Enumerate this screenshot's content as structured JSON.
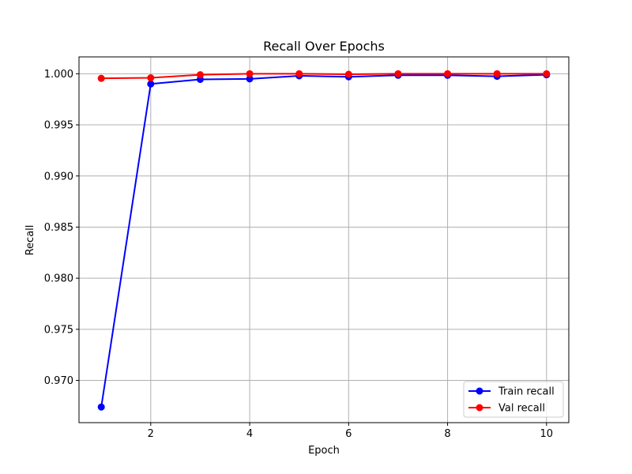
{
  "chart_data": {
    "type": "line",
    "title": "Recall Over Epochs",
    "xlabel": "Epoch",
    "ylabel": "Recall",
    "x": [
      1,
      2,
      3,
      4,
      5,
      6,
      7,
      8,
      9,
      10
    ],
    "xlim": [
      0.55,
      10.45
    ],
    "ylim": [
      0.96587,
      1.00165
    ],
    "xticks": [
      2,
      4,
      6,
      8,
      10
    ],
    "xtick_labels": [
      "2",
      "4",
      "6",
      "8",
      "10"
    ],
    "yticks": [
      0.97,
      0.975,
      0.98,
      0.985,
      0.99,
      0.995,
      1.0
    ],
    "ytick_labels": [
      "0.970",
      "0.975",
      "0.980",
      "0.985",
      "0.990",
      "0.995",
      "1.000"
    ],
    "grid": true,
    "legend_position": "lower right",
    "series": [
      {
        "name": "Train recall",
        "color": "#0000ff",
        "values": [
          0.9674,
          0.999,
          0.99945,
          0.9995,
          0.9998,
          0.9997,
          0.99985,
          0.99985,
          0.99975,
          0.9999
        ]
      },
      {
        "name": "Val recall",
        "color": "#ff0000",
        "values": [
          0.99955,
          0.9996,
          0.9999,
          1.0,
          1.0,
          0.99995,
          1.0,
          1.0,
          1.0,
          1.0
        ]
      }
    ]
  }
}
